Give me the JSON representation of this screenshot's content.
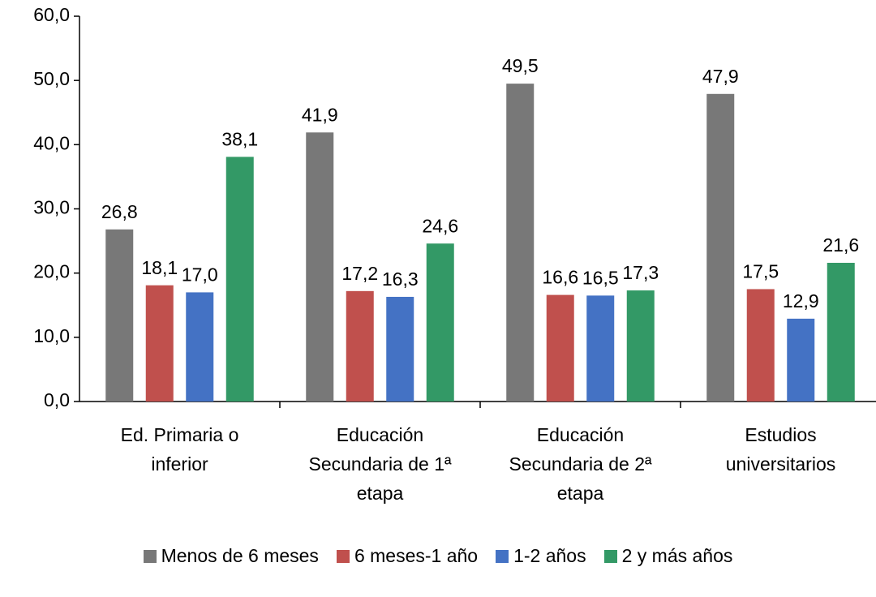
{
  "chart_data": {
    "type": "bar",
    "categories": [
      "Ed. Primaria o inferior",
      "Educación Secundaria de 1ª etapa",
      "Educación Secundaria de 2ª etapa",
      "Estudios universitarios"
    ],
    "series": [
      {
        "name": "Menos de 6 meses",
        "color": "#787878",
        "values": [
          26.8,
          41.9,
          49.5,
          47.9
        ],
        "value_labels": [
          "26,8",
          "41,9",
          "49,5",
          "47,9"
        ]
      },
      {
        "name": "6 meses-1 año",
        "color": "#c0504d",
        "values": [
          18.1,
          17.2,
          16.6,
          17.5
        ],
        "value_labels": [
          "18,1",
          "17,2",
          "16,6",
          "17,5"
        ]
      },
      {
        "name": "1-2 años",
        "color": "#4472c4",
        "values": [
          17.0,
          16.3,
          16.5,
          12.9
        ],
        "value_labels": [
          "17,0",
          "16,3",
          "16,5",
          "12,9"
        ]
      },
      {
        "name": "2 y más años",
        "color": "#339966",
        "values": [
          38.1,
          24.6,
          17.3,
          21.6
        ],
        "value_labels": [
          "38,1",
          "24,6",
          "17,3",
          "21,6"
        ]
      }
    ],
    "ylim": [
      0,
      60
    ],
    "yticks": [
      {
        "value": 0,
        "label": "0,0"
      },
      {
        "value": 10,
        "label": "10,0"
      },
      {
        "value": 20,
        "label": "20,0"
      },
      {
        "value": 30,
        "label": "30,0"
      },
      {
        "value": 40,
        "label": "40,0"
      },
      {
        "value": 50,
        "label": "50,0"
      },
      {
        "value": 60,
        "label": "60,0"
      }
    ],
    "legend": "bottom"
  }
}
